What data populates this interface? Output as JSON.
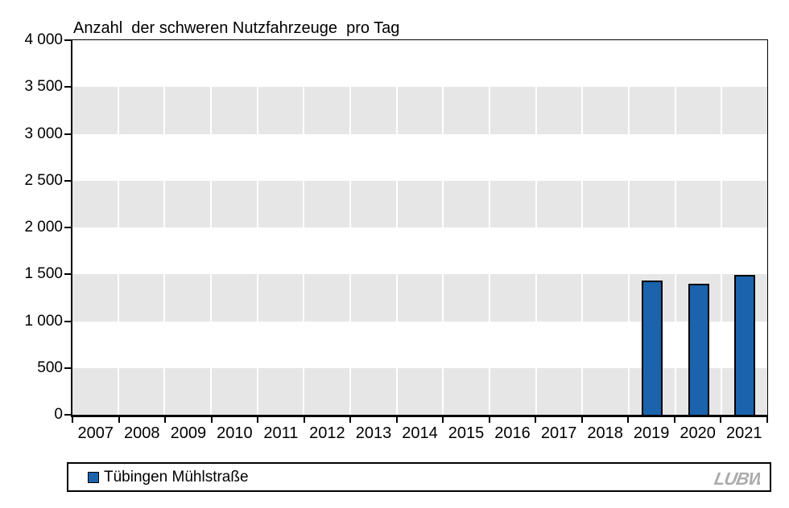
{
  "chart_data": {
    "type": "bar",
    "title": "Anzahl  der schweren Nutzfahrzeuge  pro Tag",
    "categories": [
      "2007",
      "2008",
      "2009",
      "2010",
      "2011",
      "2012",
      "2013",
      "2014",
      "2015",
      "2016",
      "2017",
      "2018",
      "2019",
      "2020",
      "2021"
    ],
    "series": [
      {
        "name": "Tübingen Mühlstraße",
        "color": "#1B63AC",
        "values": [
          null,
          null,
          null,
          null,
          null,
          null,
          null,
          null,
          null,
          null,
          null,
          null,
          1430,
          1400,
          1490
        ]
      }
    ],
    "xlabel": "",
    "ylabel": "",
    "ylim": [
      0,
      4000
    ],
    "ytick_step": 500,
    "ytick_labels_top_to_bottom": [
      "4 000",
      "3 500",
      "3 000",
      "2 500",
      "2 000",
      "1 500",
      "1 000",
      "500",
      "0"
    ],
    "plot_background": "alternating horizontal bands, white column separators",
    "band_colors": [
      "#FFFFFF",
      "#E6E6E6"
    ],
    "grid": "off",
    "legend_position": "bottom"
  },
  "legend": {
    "label": "Tübingen Mühlstraße",
    "marker_color": "#1B63AC"
  },
  "logo": {
    "text": "LUBW",
    "color": "#ACACAC"
  }
}
